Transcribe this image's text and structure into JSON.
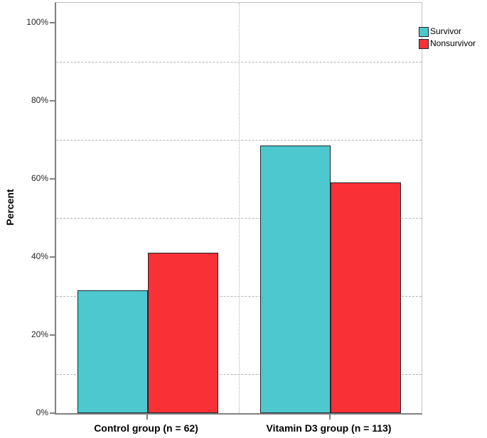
{
  "chart_data": {
    "type": "bar",
    "title": "",
    "ylabel": "Percent",
    "xlabel": "",
    "categories": [
      "Control group (n = 62)",
      "Vitamin D3 group (n = 113)"
    ],
    "series": [
      {
        "name": "Survivor",
        "color": "#4dc8ce",
        "values": [
          31.5,
          68.5
        ]
      },
      {
        "name": "Nonsurvivor",
        "color": "#f93137",
        "values": [
          41.0,
          59.0
        ]
      }
    ],
    "ylim": [
      0,
      105
    ],
    "yticks": [
      0,
      20,
      40,
      60,
      80,
      100
    ],
    "ytick_labels": [
      "0%",
      "20%",
      "40%",
      "60%",
      "80%",
      "100%"
    ],
    "gridlines_y": [
      10,
      30,
      50,
      70,
      90
    ],
    "grid_style_horizontal": "dashed",
    "grid_style_vertical": "dotted",
    "vertical_gridline_between_categories": true,
    "legend_position": "top-right",
    "colors": {
      "bar_border": "#21242c",
      "axis": "#808080",
      "frame": "#c2c2c2",
      "gridline": "#b3b3b3",
      "tick_text": "#262626",
      "label_text": "#000000"
    }
  }
}
